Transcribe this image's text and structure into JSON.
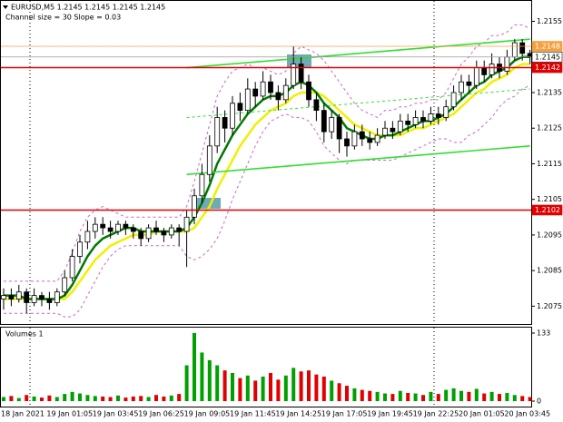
{
  "chart_data": [
    {
      "type": "candlestick",
      "title": "EURUSD,M5  1.2145 1.2145 1.2145 1.2145",
      "subtitle": "Channel size = 30 Slope = 0.03",
      "categories": [
        "18 Jan 2021",
        null,
        null,
        null,
        null,
        null,
        "19 Jan 01:05",
        null,
        null,
        null,
        null,
        null,
        "19 Jan 03:45",
        null,
        null,
        null,
        null,
        null,
        "19 Jan 06:25",
        null,
        null,
        null,
        null,
        null,
        "19 Jan 09:05",
        null,
        null,
        null,
        null,
        null,
        "19 Jan 11:45",
        null,
        null,
        null,
        null,
        null,
        "19 Jan 14:25",
        null,
        null,
        null,
        null,
        null,
        "19 Jan 17:05",
        null,
        null,
        null,
        null,
        null,
        "19 Jan 19:45",
        null,
        null,
        null,
        null,
        null,
        "19 Jan 22:25",
        null,
        null,
        null,
        null,
        null,
        "20 Jan 01:05",
        null,
        null,
        null,
        null,
        null,
        "20 Jan 03:45",
        null,
        null,
        null
      ],
      "open": [
        1.2077,
        1.2078,
        1.2077,
        1.2079,
        1.2076,
        1.2078,
        1.2077,
        1.2076,
        1.2079,
        1.2083,
        1.2089,
        1.2093,
        1.2096,
        1.2098,
        1.2097,
        1.2096,
        1.2098,
        1.2097,
        1.2096,
        1.2094,
        1.2097,
        1.2096,
        1.2095,
        1.2097,
        1.2096,
        1.21,
        1.2106,
        1.2112,
        1.212,
        1.2128,
        1.2125,
        1.2132,
        1.213,
        1.2136,
        1.2134,
        1.2138,
        1.2135,
        1.2133,
        1.2137,
        1.2143,
        1.2138,
        1.2133,
        1.213,
        1.2124,
        1.2128,
        1.2122,
        1.212,
        1.2124,
        1.2122,
        1.2121,
        1.2123,
        1.2125,
        1.2124,
        1.2127,
        1.2126,
        1.2128,
        1.2127,
        1.2129,
        1.2128,
        1.2131,
        1.2135,
        1.2138,
        1.2137,
        1.2142,
        1.214,
        1.2143,
        1.2141,
        1.2145,
        1.2149,
        1.2146
      ],
      "high": [
        1.208,
        1.208,
        1.2081,
        1.208,
        1.208,
        1.2079,
        1.2079,
        1.208,
        1.2085,
        1.2091,
        1.2095,
        1.2099,
        1.21,
        1.21,
        1.2099,
        1.2099,
        1.2099,
        1.2098,
        1.2097,
        1.2098,
        1.2099,
        1.2097,
        1.2098,
        1.2098,
        1.2102,
        1.2108,
        1.2115,
        1.2123,
        1.2131,
        1.213,
        1.2134,
        1.2135,
        1.2139,
        1.2138,
        1.2141,
        1.214,
        1.2137,
        1.2139,
        1.2148,
        1.2145,
        1.214,
        1.2135,
        1.2132,
        1.213,
        1.2129,
        1.2124,
        1.2126,
        1.2126,
        1.2124,
        1.2125,
        1.2127,
        1.2127,
        1.2129,
        1.2129,
        1.213,
        1.213,
        1.2131,
        1.2131,
        1.2133,
        1.2137,
        1.214,
        1.214,
        1.2144,
        1.2144,
        1.2146,
        1.2145,
        1.2147,
        1.215,
        1.215,
        1.2147
      ],
      "low": [
        1.2074,
        1.2075,
        1.2076,
        1.2073,
        1.2075,
        1.2075,
        1.2074,
        1.2075,
        1.2078,
        1.2082,
        1.2087,
        1.2091,
        1.2094,
        1.2095,
        1.2094,
        1.2095,
        1.2095,
        1.2094,
        1.2092,
        1.2093,
        1.2095,
        1.2093,
        1.2094,
        1.2092,
        1.2086,
        1.2098,
        1.2104,
        1.211,
        1.2118,
        1.2121,
        1.2123,
        1.2127,
        1.2129,
        1.2131,
        1.2133,
        1.2133,
        1.213,
        1.2132,
        1.2136,
        1.2136,
        1.2131,
        1.2127,
        1.2121,
        1.2122,
        1.2118,
        1.2117,
        1.2119,
        1.212,
        1.2119,
        1.212,
        1.2122,
        1.2122,
        1.2123,
        1.2124,
        1.2125,
        1.2125,
        1.2126,
        1.2126,
        1.2127,
        1.213,
        1.2133,
        1.2135,
        1.2136,
        1.2138,
        1.2139,
        1.2139,
        1.214,
        1.2144,
        1.2144,
        1.2143
      ],
      "close": [
        1.2078,
        1.2077,
        1.2079,
        1.2076,
        1.2078,
        1.2077,
        1.2076,
        1.2079,
        1.2083,
        1.2089,
        1.2093,
        1.2096,
        1.2098,
        1.2097,
        1.2096,
        1.2098,
        1.2097,
        1.2096,
        1.2094,
        1.2097,
        1.2096,
        1.2095,
        1.2097,
        1.2096,
        1.21,
        1.2106,
        1.2112,
        1.212,
        1.2128,
        1.2125,
        1.2132,
        1.213,
        1.2136,
        1.2134,
        1.2138,
        1.2135,
        1.2133,
        1.2137,
        1.2143,
        1.2138,
        1.2133,
        1.213,
        1.2124,
        1.2128,
        1.2122,
        1.212,
        1.2124,
        1.2122,
        1.2121,
        1.2123,
        1.2125,
        1.2124,
        1.2127,
        1.2126,
        1.2128,
        1.2127,
        1.2129,
        1.2128,
        1.2131,
        1.2135,
        1.2138,
        1.2137,
        1.2142,
        1.214,
        1.2143,
        1.2141,
        1.2145,
        1.2149,
        1.2146,
        1.2145
      ],
      "candle_color": "#000000",
      "lines": [
        {
          "color": "#cc66cc",
          "dashed": true,
          "width": 1,
          "values": [
            1.2082,
            1.2082,
            1.2082,
            1.2082,
            1.2082,
            1.2082,
            1.2082,
            1.2082,
            1.2085,
            1.209,
            1.2096,
            1.21,
            1.2102,
            1.2103,
            1.2102,
            1.2101,
            1.21,
            1.21,
            1.21,
            1.21,
            1.21,
            1.21,
            1.21,
            1.21,
            1.2103,
            1.211,
            1.2118,
            1.2126,
            1.2134,
            1.2138,
            1.2141,
            1.2142,
            1.2143,
            1.2142,
            1.2142,
            1.2141,
            1.214,
            1.2141,
            1.2146,
            1.2148,
            1.2147,
            1.2146,
            1.2144,
            1.2141,
            1.2138,
            1.2135,
            1.2132,
            1.213,
            1.2129,
            1.2128,
            1.213,
            1.213,
            1.2131,
            1.2131,
            1.2132,
            1.2132,
            1.2133,
            1.2133,
            1.2135,
            1.2139,
            1.2143,
            1.2145,
            1.2148,
            1.2149,
            1.2151,
            1.2151,
            1.2152,
            1.2154,
            1.2154,
            1.2153
          ]
        },
        {
          "color": "#cc66cc",
          "dashed": true,
          "width": 1,
          "values": [
            1.2073,
            1.2073,
            1.2073,
            1.2073,
            1.2073,
            1.2073,
            1.2073,
            1.2073,
            1.2072,
            1.2072,
            1.2074,
            1.2078,
            1.2082,
            1.2086,
            1.2089,
            1.2091,
            1.2092,
            1.2092,
            1.2092,
            1.2092,
            1.2092,
            1.2092,
            1.2092,
            1.2092,
            1.2089,
            1.2088,
            1.2089,
            1.2091,
            1.2094,
            1.2099,
            1.2105,
            1.211,
            1.2115,
            1.212,
            1.2124,
            1.2127,
            1.2128,
            1.2129,
            1.2128,
            1.2128,
            1.2127,
            1.2124,
            1.212,
            1.2118,
            1.2116,
            1.2115,
            1.2116,
            1.2116,
            1.2116,
            1.2116,
            1.2116,
            1.2116,
            1.2117,
            1.2118,
            1.2119,
            1.212,
            1.2121,
            1.2122,
            1.2122,
            1.2121,
            1.2121,
            1.2123,
            1.2124,
            1.2126,
            1.2128,
            1.2131,
            1.2133,
            1.2134,
            1.2136,
            1.2137
          ]
        },
        {
          "color": "#f0f000",
          "dashed": false,
          "width": 2.5,
          "values": [
            1.2077,
            1.2077,
            1.2077,
            1.2077,
            1.2077,
            1.2077,
            1.2077,
            1.2077,
            1.2077,
            1.2079,
            1.2082,
            1.2085,
            1.2088,
            1.209,
            1.2092,
            1.2093,
            1.2094,
            1.2095,
            1.2095,
            1.2095,
            1.2096,
            1.2096,
            1.2096,
            1.2096,
            1.2096,
            1.2097,
            1.21,
            1.2103,
            1.2108,
            1.2112,
            1.2116,
            1.212,
            1.2123,
            1.2126,
            1.2128,
            1.213,
            1.2131,
            1.2132,
            1.2134,
            1.2135,
            1.2135,
            1.2135,
            1.2134,
            1.2132,
            1.213,
            1.2128,
            1.2126,
            1.2125,
            1.2124,
            1.2123,
            1.2123,
            1.2123,
            1.2123,
            1.2124,
            1.2125,
            1.2125,
            1.2126,
            1.2127,
            1.2128,
            1.2129,
            1.2131,
            1.2133,
            1.2135,
            1.2136,
            1.2138,
            1.2139,
            1.214,
            1.2142,
            1.2143,
            1.2143
          ]
        },
        {
          "color": "#007a00",
          "dashed": false,
          "width": 2.5,
          "values": [
            1.2078,
            1.2078,
            1.2078,
            1.2077,
            1.2077,
            1.2077,
            1.2077,
            1.2077,
            1.2078,
            1.2081,
            1.2085,
            1.2089,
            1.2092,
            1.2094,
            1.2095,
            1.2096,
            1.2097,
            1.2097,
            1.2096,
            1.2096,
            1.2096,
            1.2096,
            1.2096,
            1.2096,
            1.2097,
            1.21,
            1.2104,
            1.2109,
            1.2115,
            1.2119,
            1.2123,
            1.2126,
            1.2129,
            1.2131,
            1.2133,
            1.2134,
            1.2134,
            1.2135,
            1.2137,
            1.2138,
            1.2137,
            1.2135,
            1.2132,
            1.213,
            1.2128,
            1.2125,
            1.2124,
            1.2123,
            1.2122,
            1.2122,
            1.2123,
            1.2123,
            1.2124,
            1.2125,
            1.2126,
            1.2127,
            1.2127,
            1.2128,
            1.2129,
            1.2131,
            1.2133,
            1.2135,
            1.2137,
            1.2138,
            1.214,
            1.2141,
            1.2142,
            1.2144,
            1.2145,
            1.2145
          ]
        }
      ],
      "channels": [
        {
          "color": "#33dd33",
          "dashed": false,
          "from": 24,
          "to": 69,
          "values": [
            1.2142,
            1.215
          ]
        },
        {
          "color": "#33dd33",
          "dashed": true,
          "from": 24,
          "to": 69,
          "values": [
            1.2128,
            1.2136
          ]
        },
        {
          "color": "#33dd33",
          "dashed": false,
          "from": 24,
          "to": 69,
          "values": [
            1.2112,
            1.212
          ]
        }
      ],
      "levels": [
        {
          "value": 1.2148,
          "color": "#f5a040",
          "text_color": "#ffffff"
        },
        {
          "value": 1.2145,
          "color": "#ffffff",
          "text_color": "#000000"
        },
        {
          "value": 1.2142,
          "color": "#e00000",
          "text_color": "#ffffff"
        },
        {
          "value": 1.2102,
          "color": "#e00000",
          "text_color": "#ffffff"
        }
      ],
      "ylim": [
        1.207,
        1.2161
      ],
      "yticks": [
        1.2075,
        1.2085,
        1.2095,
        1.2105,
        1.2115,
        1.2125,
        1.2135,
        1.2145,
        1.2155
      ]
    },
    {
      "type": "volume",
      "title": "Volumes 1",
      "values": [
        8,
        10,
        6,
        12,
        9,
        7,
        11,
        8,
        14,
        18,
        15,
        12,
        10,
        9,
        8,
        11,
        7,
        9,
        10,
        8,
        12,
        9,
        11,
        14,
        70,
        133,
        95,
        80,
        70,
        60,
        55,
        45,
        50,
        40,
        48,
        55,
        42,
        50,
        65,
        58,
        60,
        52,
        48,
        40,
        35,
        30,
        25,
        22,
        20,
        18,
        15,
        14,
        20,
        16,
        15,
        12,
        18,
        14,
        22,
        25,
        20,
        18,
        24,
        15,
        18,
        14,
        16,
        12,
        10,
        8
      ],
      "up_color": "#00a000",
      "down_color": "#e00000",
      "ylim": [
        0,
        133
      ],
      "yticks": [
        0,
        133
      ]
    }
  ]
}
